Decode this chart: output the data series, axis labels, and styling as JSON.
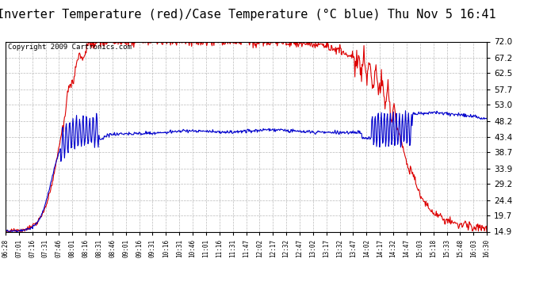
{
  "title": "Inverter Temperature (red)/Case Temperature (°C blue) Thu Nov 5 16:41",
  "copyright": "Copyright 2009 Cartronics.com",
  "yticks": [
    14.9,
    19.7,
    24.4,
    29.2,
    33.9,
    38.7,
    43.4,
    48.2,
    53.0,
    57.7,
    62.5,
    67.2,
    72.0
  ],
  "ymin": 14.9,
  "ymax": 72.0,
  "xtick_labels": [
    "06:28",
    "07:01",
    "07:16",
    "07:31",
    "07:46",
    "08:01",
    "08:16",
    "08:31",
    "08:46",
    "09:01",
    "09:16",
    "09:31",
    "10:16",
    "10:31",
    "10:46",
    "11:01",
    "11:16",
    "11:31",
    "11:47",
    "12:02",
    "12:17",
    "12:32",
    "12:47",
    "13:02",
    "13:17",
    "13:32",
    "13:47",
    "14:02",
    "14:17",
    "14:32",
    "14:47",
    "15:03",
    "15:18",
    "15:33",
    "15:48",
    "16:03",
    "16:30"
  ],
  "background_color": "#ffffff",
  "plot_bg_color": "#ffffff",
  "grid_color": "#bbbbbb",
  "red_color": "#dd0000",
  "blue_color": "#0000cc",
  "title_fontsize": 11,
  "copyright_fontsize": 6.5
}
